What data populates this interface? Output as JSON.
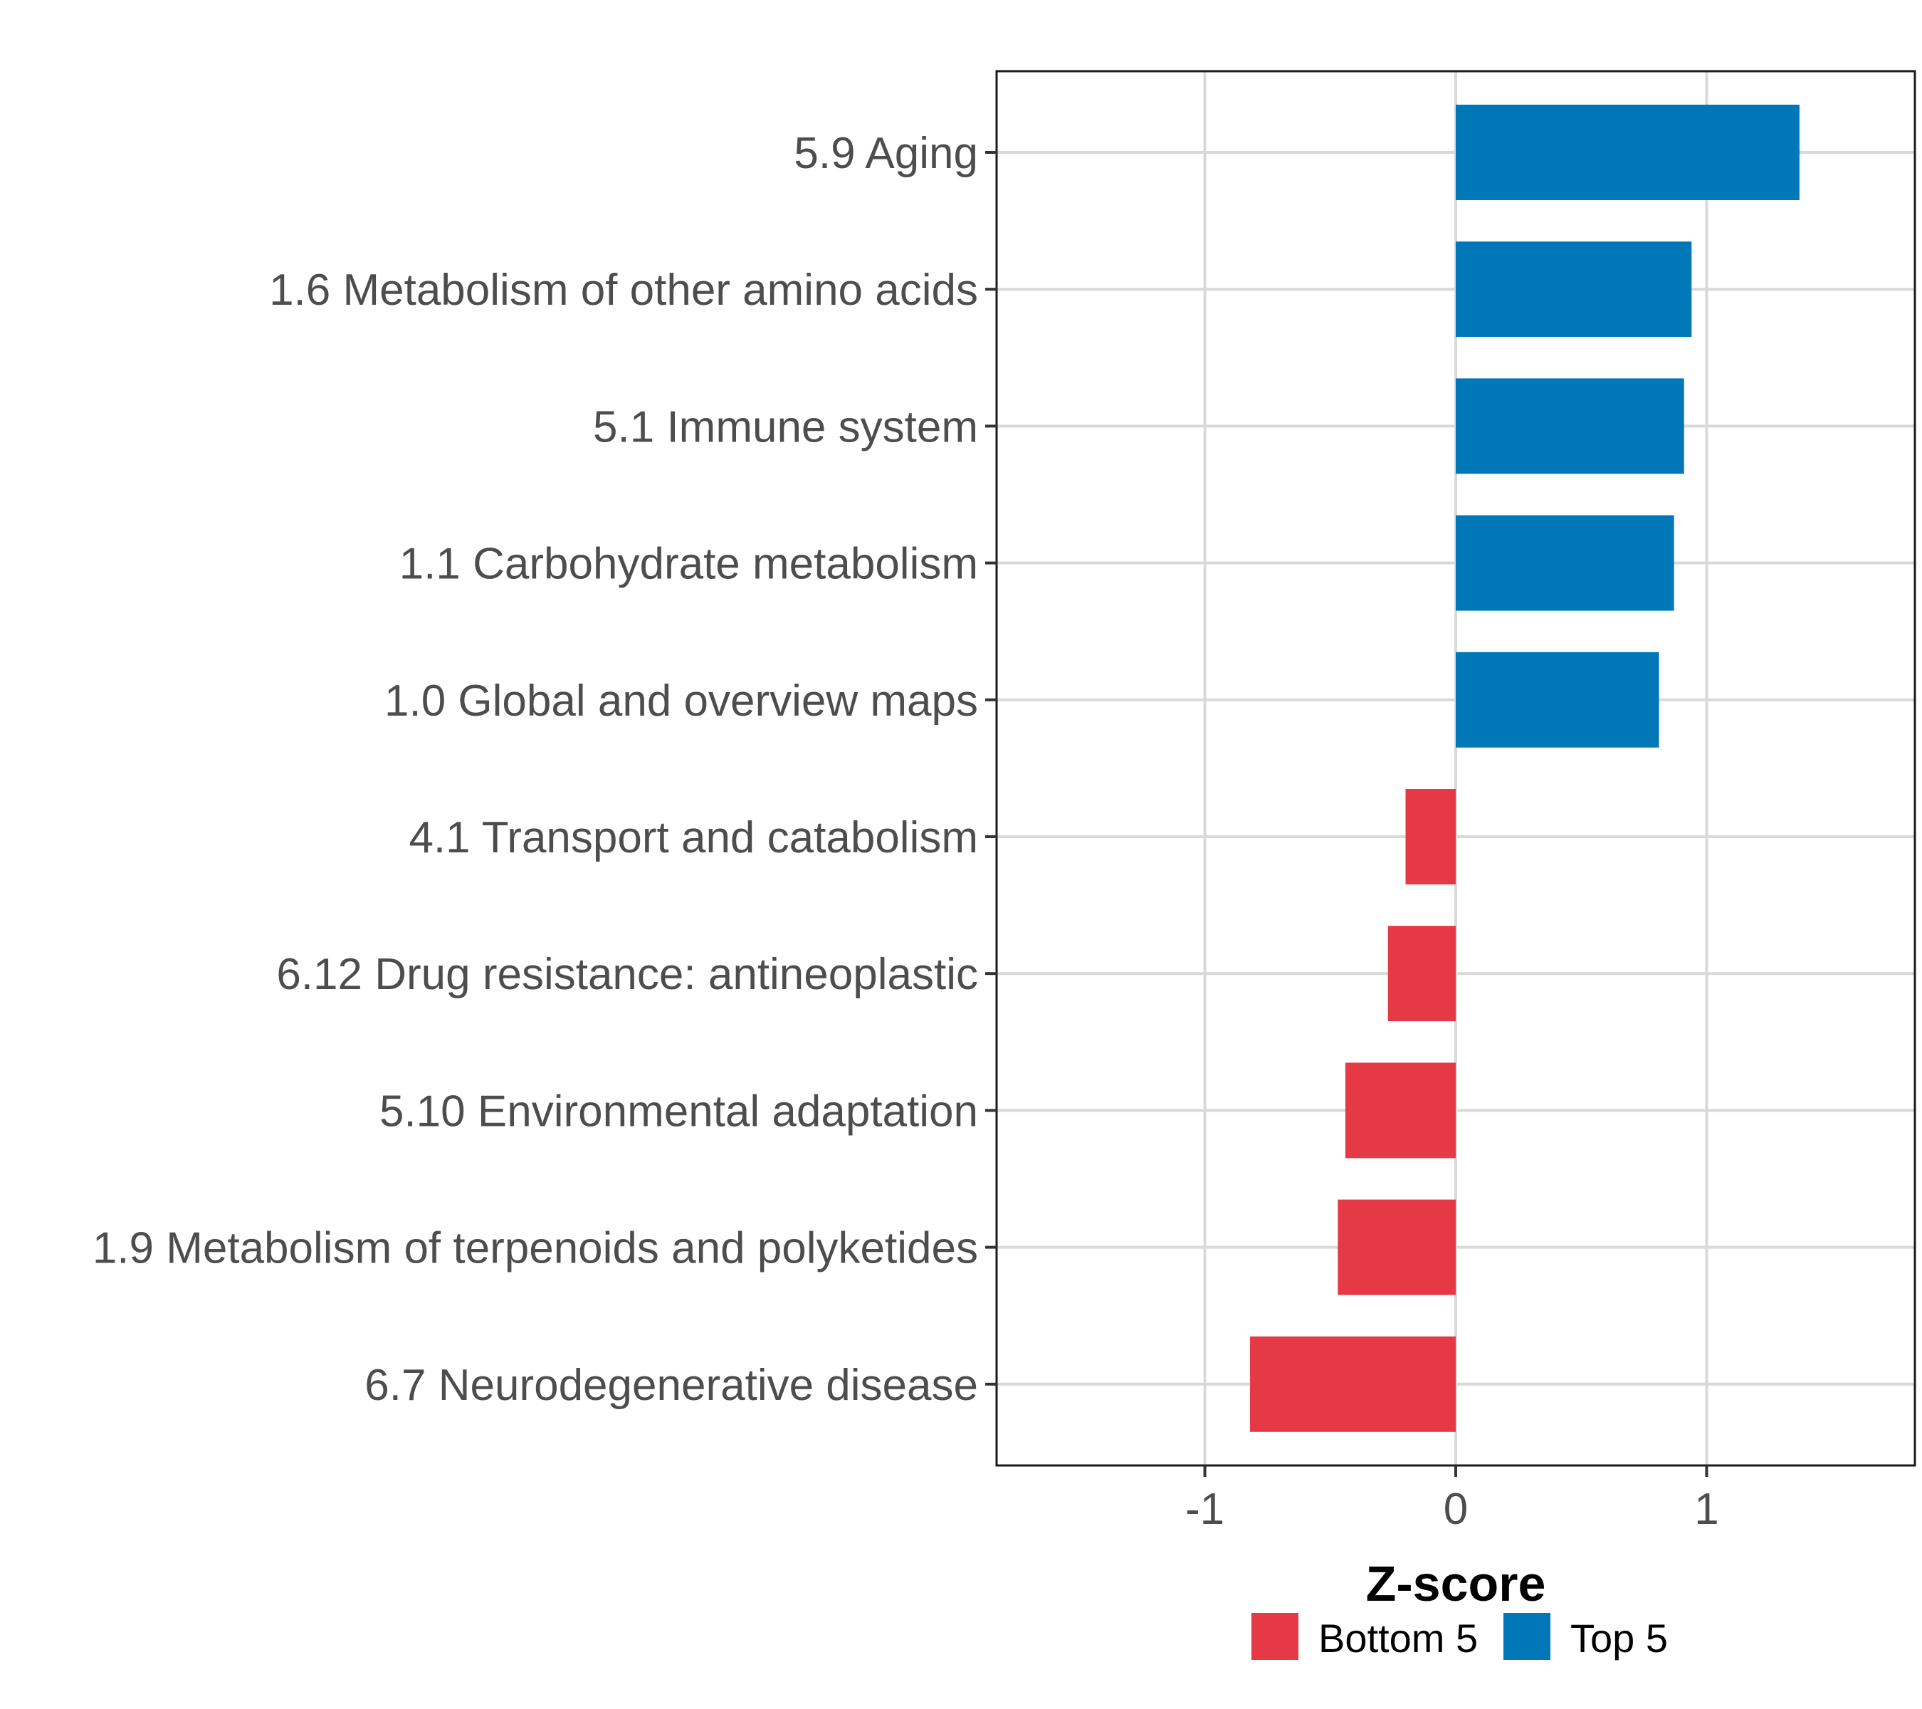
{
  "chart_data": {
    "type": "bar",
    "orientation": "horizontal",
    "title": "",
    "xlabel": "Z-score",
    "ylabel": "",
    "xlim": [
      -1.83,
      1.83
    ],
    "xticks": [
      -1,
      0,
      1
    ],
    "xtick_labels": [
      "-1",
      "0",
      "1"
    ],
    "grid": true,
    "legend_position": "bottom",
    "categories": [
      "5.9 Aging",
      "1.6 Metabolism of other amino acids",
      "5.1 Immune system",
      "1.1 Carbohydrate metabolism",
      "1.0 Global and overview maps",
      "4.1 Transport and catabolism",
      "6.12 Drug resistance: antineoplastic",
      "5.10 Environmental adaptation",
      "1.9 Metabolism of terpenoids and polyketides",
      "6.7 Neurodegenerative disease"
    ],
    "values": [
      1.37,
      0.94,
      0.91,
      0.87,
      0.81,
      -0.2,
      -0.27,
      -0.44,
      -0.47,
      -0.82
    ],
    "groups": [
      "Top 5",
      "Top 5",
      "Top 5",
      "Top 5",
      "Top 5",
      "Bottom 5",
      "Bottom 5",
      "Bottom 5",
      "Bottom 5",
      "Bottom 5"
    ],
    "legend": [
      {
        "name": "Bottom 5",
        "color": "#e63946"
      },
      {
        "name": "Top 5",
        "color": "#0077b6"
      }
    ]
  }
}
